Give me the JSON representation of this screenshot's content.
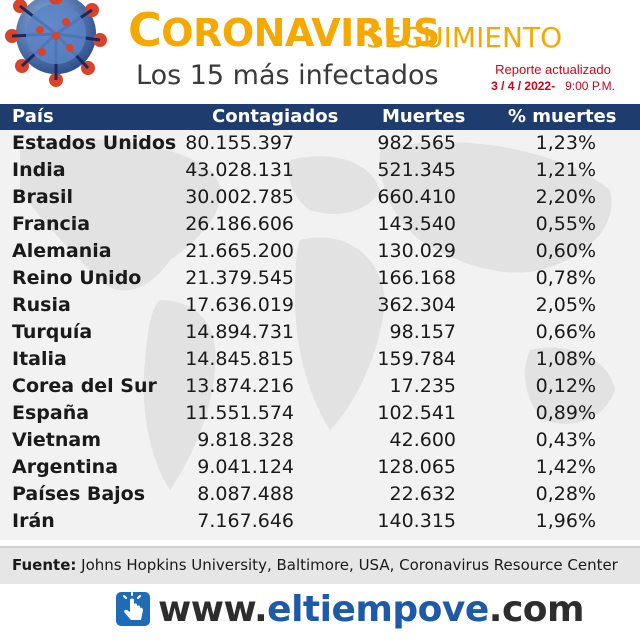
{
  "header": {
    "title_initial": "C",
    "title_rest": "ORONAVIRUS",
    "title_second": "SEGUIMIENTO",
    "subtitle": "Los 15 más infectados",
    "report_label": "Reporte actualizado",
    "report_date": "3 / 4 / 2022-",
    "report_time": "9:00 P.M."
  },
  "table": {
    "columns": [
      "País",
      "Contagiados",
      "Muertes",
      "% muertes"
    ],
    "rows": [
      {
        "country": "Estados Unidos",
        "cases": "80.155.397",
        "deaths": "982.565",
        "pct": "1,23%"
      },
      {
        "country": "India",
        "cases": "43.028.131",
        "deaths": "521.345",
        "pct": "1,21%"
      },
      {
        "country": "Brasil",
        "cases": "30.002.785",
        "deaths": "660.410",
        "pct": "2,20%"
      },
      {
        "country": "Francia",
        "cases": "26.186.606",
        "deaths": "143.540",
        "pct": "0,55%"
      },
      {
        "country": "Alemania",
        "cases": "21.665.200",
        "deaths": "130.029",
        "pct": "0,60%"
      },
      {
        "country": "Reino Unido",
        "cases": "21.379.545",
        "deaths": "166.168",
        "pct": "0,78%"
      },
      {
        "country": "Rusia",
        "cases": "17.636.019",
        "deaths": "362.304",
        "pct": "2,05%"
      },
      {
        "country": "Turquía",
        "cases": "14.894.731",
        "deaths": "98.157",
        "pct": "0,66%"
      },
      {
        "country": "Italia",
        "cases": "14.845.815",
        "deaths": "159.784",
        "pct": "1,08%"
      },
      {
        "country": "Corea del Sur",
        "cases": "13.874.216",
        "deaths": "17.235",
        "pct": "0,12%"
      },
      {
        "country": "España",
        "cases": "11.551.574",
        "deaths": "102.541",
        "pct": "0,89%"
      },
      {
        "country": "Vietnam",
        "cases": "9.818.328",
        "deaths": "42.600",
        "pct": "0,43%"
      },
      {
        "country": "Argentina",
        "cases": "9.041.124",
        "deaths": "128.065",
        "pct": "1,42%"
      },
      {
        "country": "Países Bajos",
        "cases": "8.087.488",
        "deaths": "22.632",
        "pct": "0,28%"
      },
      {
        "country": "Irán",
        "cases": "7.167.646",
        "deaths": "140.315",
        "pct": "1,96%"
      }
    ]
  },
  "source": {
    "label": "Fuente:",
    "text": "Johns Hopkins University, Baltimore, USA, Coronavirus Resource Center"
  },
  "footer": {
    "prefix": "www.",
    "domain": "eltiempove",
    "suffix": ".com"
  },
  "colors": {
    "brand_orange": "#f5a800",
    "header_blue": "#1e3d6e",
    "report_red": "#d0021b",
    "site_blue": "#1e5aa8"
  },
  "icons": [
    "coronavirus-illustration",
    "click-hand-icon"
  ]
}
